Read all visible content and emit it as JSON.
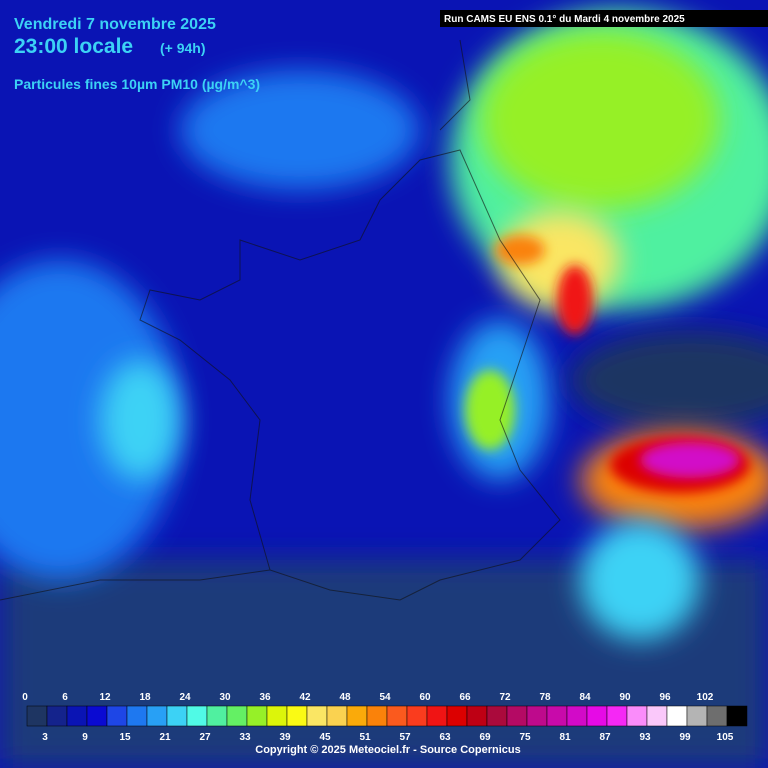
{
  "header": {
    "date": "Vendredi 7 novembre 2025",
    "time": "23:00 locale",
    "lead": "(+ 94h)",
    "variable": "Particules fines 10µm PM10 (µg/m^3)"
  },
  "run": "Run CAMS EU ENS 0.1° du Mardi 4 novembre 2025",
  "legend": {
    "values": [
      0,
      3,
      6,
      9,
      12,
      15,
      18,
      21,
      24,
      27,
      30,
      33,
      36,
      39,
      42,
      45,
      48,
      51,
      54,
      57,
      60,
      63,
      66,
      69,
      72,
      75,
      78,
      81,
      84,
      87,
      90,
      93,
      96,
      99,
      102,
      105
    ],
    "colors": [
      "#1e3562",
      "#14238c",
      "#0a14b4",
      "#0a0ad2",
      "#1e46e6",
      "#1e78f0",
      "#28a0f5",
      "#3cd2f5",
      "#50fae6",
      "#50f0a0",
      "#64f064",
      "#96f028",
      "#dcf50a",
      "#fafa14",
      "#fae664",
      "#fad250",
      "#faaa0a",
      "#fa820a",
      "#fa5a1e",
      "#fa3c1e",
      "#f01414",
      "#dc0000",
      "#be0014",
      "#aa0a3c",
      "#b40a64",
      "#be0a8c",
      "#c80aaa",
      "#d20ac8",
      "#e60ae6",
      "#f528f5",
      "#fa8cfa",
      "#fac8fa",
      "#ffffff",
      "#b4b4b4",
      "#6e6e6e",
      "#000000"
    ]
  },
  "copyright": "Copyright © 2025 Meteociel.fr - Source Copernicus"
}
